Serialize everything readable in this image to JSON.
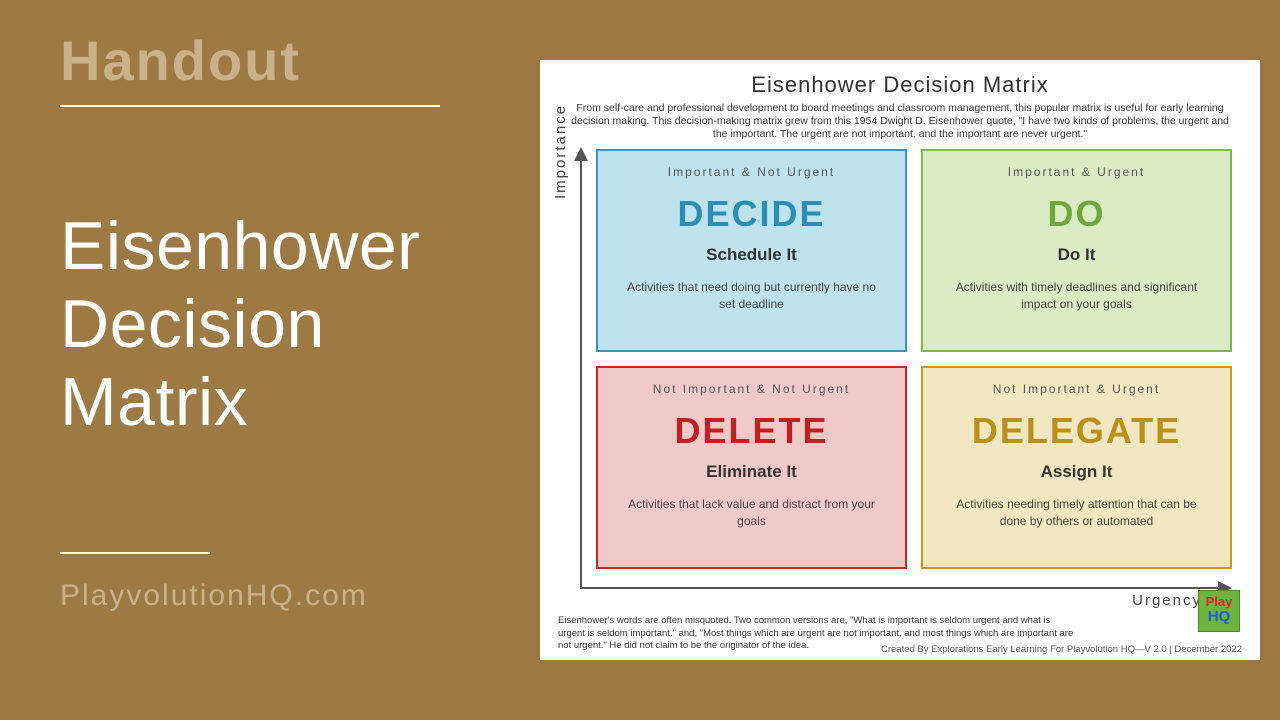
{
  "page": {
    "bg_color": "#9d7a43",
    "accent_text_color": "#c9b18a"
  },
  "left": {
    "label": "Handout",
    "title_line1": "Eisenhower",
    "title_line2": "Decision",
    "title_line3": "Matrix",
    "website": "PlayvolutionHQ.com"
  },
  "matrix": {
    "title": "Eisenhower Decision Matrix",
    "intro": "From self-care and professional development to board meetings and classroom management, this popular matrix is useful for early learning decision making. This decision-making matrix grew from this 1954 Dwight D. Eisenhower quote, \"I have two kinds of problems, the urgent and the important. The urgent are not important, and the important are never urgent.\"",
    "y_axis": "Importance",
    "x_axis": "Urgency",
    "quadrants": [
      {
        "id": "decide",
        "category": "Important & Not Urgent",
        "action": "DECIDE",
        "subtitle": "Schedule It",
        "description": "Activities that need doing but currently have no set deadline",
        "fill": "#bfe3ee",
        "border": "#3a95b8",
        "action_color": "#2b8fb5"
      },
      {
        "id": "do",
        "category": "Important & Urgent",
        "action": "DO",
        "subtitle": "Do It",
        "description": "Activities with timely deadlines and significant impact on your goals",
        "fill": "#d9ecc4",
        "border": "#7fb84e",
        "action_color": "#6fa838"
      },
      {
        "id": "delete",
        "category": "Not Important & Not Urgent",
        "action": "DELETE",
        "subtitle": "Eliminate It",
        "description": "Activities that lack value and distract from your goals",
        "fill": "#f2c9c9",
        "border": "#c62828",
        "action_color": "#c21f1f"
      },
      {
        "id": "delegate",
        "category": "Not Important & Urgent",
        "action": "DELEGATE",
        "subtitle": "Assign It",
        "description": "Activities needing timely attention that can be done by others or automated",
        "fill": "#f2e7c0",
        "border": "#c49a1a",
        "action_color": "#b9901a"
      }
    ],
    "footnote": "Eisenhower's words are often misquoted. Two common versions are, \"What is important is seldom urgent and what is urgent is seldom important.\" and, \"Most things which are urgent are not important, and most things which are important are not urgent.\" He did not claim to be the originator of the idea.",
    "credit": "Created By Explorations Early Learning For Playvolution HQ—V 2.0 | December 2022",
    "logo": {
      "line1": "Play",
      "line2": "HQ"
    }
  },
  "styling": {
    "card_bg": "#ffffff",
    "axis_color": "#555555",
    "title_fontsize": 22,
    "action_fontsize": 36,
    "quad_border_width": 2
  }
}
